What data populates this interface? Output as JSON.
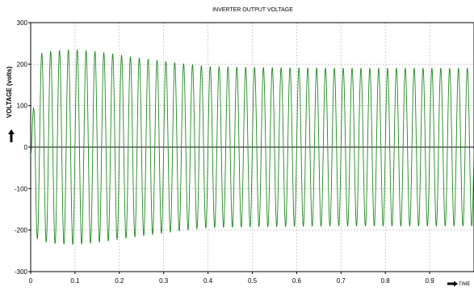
{
  "chart_data": {
    "type": "line",
    "title": "INVERTER OUTPUT VOLTAGE",
    "xlabel": "TIME",
    "ylabel": "VOLTAGE (volts)",
    "xlim": [
      0,
      1.0
    ],
    "ylim": [
      -300,
      300
    ],
    "x_ticks": [
      "0",
      "0.1",
      "0.2",
      "0.3",
      "0.4",
      "0.5",
      "0.6",
      "0.7",
      "0.8",
      "0.9"
    ],
    "y_ticks": [
      "300",
      "200",
      "100",
      "0",
      "-100",
      "-200",
      "-300"
    ],
    "grid": true,
    "series": [
      {
        "color": "#1f8a1f",
        "frequency_hz": 50,
        "envelope_t": [
          0,
          0.02,
          0.05,
          0.1,
          0.15,
          0.2,
          0.25,
          0.3,
          0.35,
          0.4,
          0.5,
          0.6,
          0.7,
          0.8,
          0.9,
          1.0
        ],
        "envelope_amplitude": [
          210,
          225,
          232,
          235,
          230,
          222,
          214,
          207,
          200,
          194,
          192,
          191,
          190,
          190,
          190,
          190
        ]
      }
    ]
  }
}
